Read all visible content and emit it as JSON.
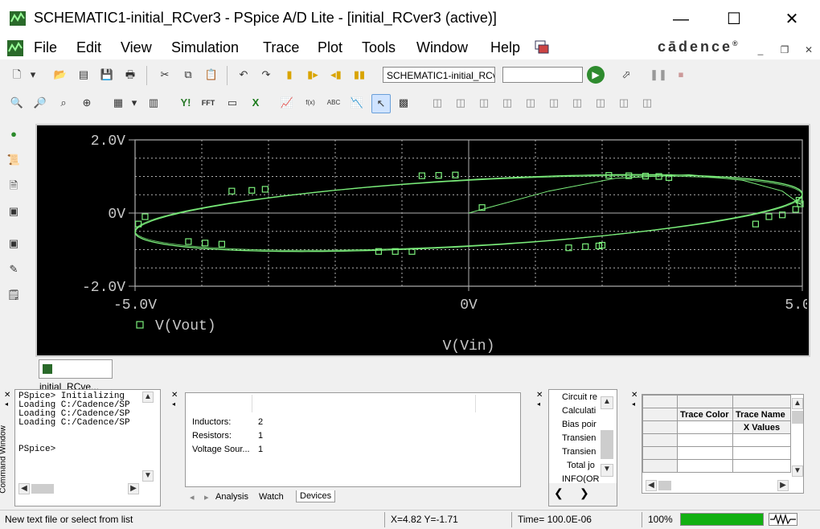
{
  "window": {
    "title": "SCHEMATIC1-initial_RCver3 - PSpice A/D Lite - [initial_RCver3 (active)]",
    "minimize": "—",
    "maximize": "☐",
    "close": "✕"
  },
  "menu": [
    "File",
    "Edit",
    "View",
    "Simulation",
    "Trace",
    "Plot",
    "Tools",
    "Window",
    "Help"
  ],
  "brand": "cādence",
  "brand_mark": "®",
  "toolbar": {
    "profile_value": "SCHEMATIC1-initial_RCver",
    "sim_combo_value": "",
    "fft_label": "FFT",
    "abc_label": "ABC",
    "fx_label": "f(x)",
    "y_label": "Y!"
  },
  "plot_tab": "initial_RCve...",
  "chart_data": {
    "type": "line",
    "title": "",
    "xlabel": "V(Vin)",
    "ylabel": "",
    "xlim": [
      -5,
      5
    ],
    "ylim": [
      -2,
      2
    ],
    "x_ticks": [
      "-5.0V",
      "0V",
      "5.0V"
    ],
    "y_ticks": [
      "2.0V",
      "0V",
      "-2.0V"
    ],
    "legend": [
      "V(Vout)"
    ],
    "colors": {
      "background": "#000000",
      "trace": "#7cf07c",
      "grid": "#b0b0b0",
      "text": "#c8c8c8"
    },
    "series": [
      {
        "name": "V(Vout)",
        "ellipse": {
          "x_amplitude": 5.0,
          "y_amplitude": 1.05,
          "phase_deg": 60
        },
        "startup": [
          [
            0,
            0
          ],
          [
            0.4,
            0.2
          ],
          [
            1.2,
            0.6
          ],
          [
            2.2,
            0.95
          ],
          [
            3.3,
            1.05
          ],
          [
            4.1,
            0.9
          ],
          [
            4.7,
            0.6
          ],
          [
            5.0,
            0.2
          ]
        ],
        "markers": [
          [
            -3.55,
            0.6
          ],
          [
            -3.25,
            0.62
          ],
          [
            -3.05,
            0.65
          ],
          [
            -0.7,
            1.02
          ],
          [
            -0.45,
            1.03
          ],
          [
            -0.2,
            1.04
          ],
          [
            0.2,
            0.15
          ],
          [
            2.1,
            1.03
          ],
          [
            2.4,
            1.02
          ],
          [
            2.65,
            1.01
          ],
          [
            2.85,
            1.0
          ],
          [
            3.0,
            0.97
          ],
          [
            4.95,
            0.35
          ],
          [
            4.97,
            0.25
          ],
          [
            4.9,
            0.1
          ],
          [
            4.7,
            -0.05
          ],
          [
            4.5,
            -0.1
          ],
          [
            4.3,
            -0.3
          ],
          [
            -4.95,
            -0.3
          ],
          [
            -4.85,
            -0.1
          ],
          [
            -4.2,
            -0.78
          ],
          [
            -3.95,
            -0.82
          ],
          [
            -3.7,
            -0.85
          ],
          [
            -1.35,
            -1.05
          ],
          [
            -1.1,
            -1.05
          ],
          [
            -0.85,
            -1.05
          ],
          [
            1.5,
            -0.95
          ],
          [
            1.75,
            -0.92
          ],
          [
            1.95,
            -0.9
          ],
          [
            2.0,
            -0.88
          ]
        ]
      }
    ]
  },
  "command_window": {
    "title": "Command Window",
    "lines": [
      "PSpice> Initializing",
      "Loading C:/Cadence/SP",
      "Loading C:/Cadence/SP",
      "Loading C:/Cadence/SP",
      "",
      "PSpice>"
    ]
  },
  "devices": {
    "rows": [
      {
        "name": "Inductors:",
        "count": "2"
      },
      {
        "name": "Resistors:",
        "count": "1"
      },
      {
        "name": "Voltage Sour...",
        "count": "1"
      }
    ],
    "tabs": [
      "Analysis",
      "Watch",
      "Devices"
    ]
  },
  "sim_list": [
    "Circuit re",
    "Calculati",
    "Bias poir",
    "Transien",
    "Transien",
    "Total jo",
    "INFO(OR"
  ],
  "trace_table": {
    "headers": [
      "Trace Color",
      "Trace Name"
    ],
    "subheader": "X Values"
  },
  "status": {
    "hint": "New text file or select from list",
    "coords": "X=4.82  Y=-1.71",
    "time": "Time= 100.0E-06",
    "zoom": "100%",
    "progress": 1.0
  }
}
